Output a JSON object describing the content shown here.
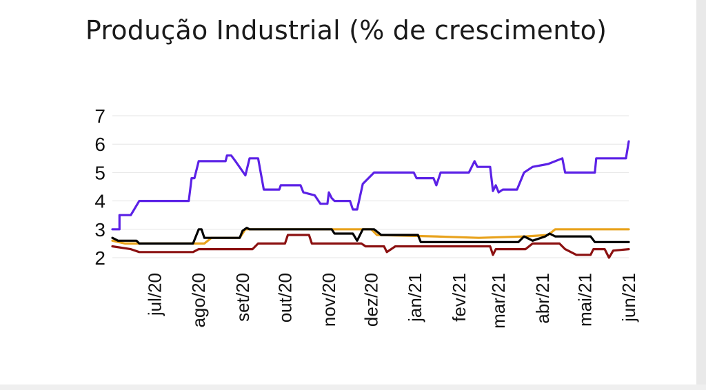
{
  "chart_data": {
    "type": "line",
    "title": "Produção Industrial (% de crescimento)",
    "xlabel": "",
    "ylabel": "",
    "ylim": [
      2,
      7
    ],
    "yticks": [
      2,
      3,
      4,
      5,
      6,
      7
    ],
    "xlim": [
      "2020-06-01",
      "2021-06-01"
    ],
    "xticks": [
      {
        "label": "jul/20",
        "date": "2020-07-01"
      },
      {
        "label": "ago/20",
        "date": "2020-08-01"
      },
      {
        "label": "set/20",
        "date": "2020-09-01"
      },
      {
        "label": "out/20",
        "date": "2020-10-01"
      },
      {
        "label": "nov/20",
        "date": "2020-11-01"
      },
      {
        "label": "dez/20",
        "date": "2020-12-01"
      },
      {
        "label": "jan/21",
        "date": "2021-01-01"
      },
      {
        "label": "fev/21",
        "date": "2021-02-01"
      },
      {
        "label": "mar/21",
        "date": "2021-03-01"
      },
      {
        "label": "abr/21",
        "date": "2021-04-01"
      },
      {
        "label": "mai/21",
        "date": "2021-05-01"
      },
      {
        "label": "jun/21",
        "date": "2021-06-01"
      }
    ],
    "grid": "horizontal",
    "legend": "none",
    "series": [
      {
        "color": "#5b21e6",
        "points": [
          [
            "2020-06-01",
            3.0
          ],
          [
            "2020-06-06",
            3.0
          ],
          [
            "2020-06-06",
            3.5
          ],
          [
            "2020-06-14",
            3.5
          ],
          [
            "2020-06-20",
            4.0
          ],
          [
            "2020-07-25",
            4.0
          ],
          [
            "2020-07-27",
            4.8
          ],
          [
            "2020-07-29",
            4.8
          ],
          [
            "2020-08-01",
            5.4
          ],
          [
            "2020-08-20",
            5.4
          ],
          [
            "2020-08-21",
            5.6
          ],
          [
            "2020-08-24",
            5.6
          ],
          [
            "2020-08-27",
            5.4
          ],
          [
            "2020-09-03",
            4.9
          ],
          [
            "2020-09-06",
            5.5
          ],
          [
            "2020-09-12",
            5.5
          ],
          [
            "2020-09-16",
            4.4
          ],
          [
            "2020-09-27",
            4.4
          ],
          [
            "2020-09-28",
            4.55
          ],
          [
            "2020-10-12",
            4.55
          ],
          [
            "2020-10-14",
            4.3
          ],
          [
            "2020-10-22",
            4.2
          ],
          [
            "2020-10-26",
            3.9
          ],
          [
            "2020-10-31",
            3.9
          ],
          [
            "2020-11-01",
            4.3
          ],
          [
            "2020-11-03",
            4.1
          ],
          [
            "2020-11-05",
            4.0
          ],
          [
            "2020-11-16",
            4.0
          ],
          [
            "2020-11-18",
            3.7
          ],
          [
            "2020-11-21",
            3.7
          ],
          [
            "2020-11-25",
            4.6
          ],
          [
            "2020-11-29",
            4.8
          ],
          [
            "2020-12-03",
            5.0
          ],
          [
            "2020-12-31",
            5.0
          ],
          [
            "2021-01-02",
            4.8
          ],
          [
            "2021-01-14",
            4.8
          ],
          [
            "2021-01-16",
            4.55
          ],
          [
            "2021-01-19",
            5.0
          ],
          [
            "2021-02-08",
            5.0
          ],
          [
            "2021-02-10",
            5.2
          ],
          [
            "2021-02-12",
            5.4
          ],
          [
            "2021-02-14",
            5.2
          ],
          [
            "2021-02-23",
            5.2
          ],
          [
            "2021-02-25",
            4.35
          ],
          [
            "2021-02-27",
            4.55
          ],
          [
            "2021-03-01",
            4.3
          ],
          [
            "2021-03-04",
            4.4
          ],
          [
            "2021-03-14",
            4.4
          ],
          [
            "2021-03-19",
            5.0
          ],
          [
            "2021-03-25",
            5.2
          ],
          [
            "2021-04-05",
            5.3
          ],
          [
            "2021-04-15",
            5.5
          ],
          [
            "2021-04-17",
            5.0
          ],
          [
            "2021-05-08",
            5.0
          ],
          [
            "2021-05-09",
            5.5
          ],
          [
            "2021-05-30",
            5.5
          ],
          [
            "2021-06-01",
            6.1
          ]
        ]
      },
      {
        "color": "#e8a21c",
        "points": [
          [
            "2020-06-01",
            2.6
          ],
          [
            "2020-06-10",
            2.5
          ],
          [
            "2020-08-05",
            2.5
          ],
          [
            "2020-08-10",
            2.7
          ],
          [
            "2020-08-30",
            2.7
          ],
          [
            "2020-09-03",
            3.0
          ],
          [
            "2020-12-01",
            3.0
          ],
          [
            "2020-12-05",
            2.8
          ],
          [
            "2021-01-15",
            2.75
          ],
          [
            "2021-02-15",
            2.7
          ],
          [
            "2021-03-20",
            2.75
          ],
          [
            "2021-04-05",
            2.8
          ],
          [
            "2021-04-10",
            3.0
          ],
          [
            "2021-06-01",
            3.0
          ]
        ]
      },
      {
        "color": "#8b1010",
        "points": [
          [
            "2020-06-01",
            2.4
          ],
          [
            "2020-06-14",
            2.3
          ],
          [
            "2020-06-20",
            2.2
          ],
          [
            "2020-07-28",
            2.2
          ],
          [
            "2020-08-01",
            2.3
          ],
          [
            "2020-09-08",
            2.3
          ],
          [
            "2020-09-12",
            2.5
          ],
          [
            "2020-10-01",
            2.5
          ],
          [
            "2020-10-03",
            2.8
          ],
          [
            "2020-10-18",
            2.8
          ],
          [
            "2020-10-20",
            2.5
          ],
          [
            "2020-11-24",
            2.5
          ],
          [
            "2020-11-27",
            2.4
          ],
          [
            "2020-12-10",
            2.4
          ],
          [
            "2020-12-12",
            2.2
          ],
          [
            "2020-12-18",
            2.4
          ],
          [
            "2021-02-23",
            2.4
          ],
          [
            "2021-02-25",
            2.1
          ],
          [
            "2021-02-27",
            2.3
          ],
          [
            "2021-03-20",
            2.3
          ],
          [
            "2021-03-25",
            2.5
          ],
          [
            "2021-04-13",
            2.5
          ],
          [
            "2021-04-17",
            2.3
          ],
          [
            "2021-04-25",
            2.1
          ],
          [
            "2021-05-05",
            2.1
          ],
          [
            "2021-05-07",
            2.3
          ],
          [
            "2021-05-15",
            2.3
          ],
          [
            "2021-05-18",
            2.0
          ],
          [
            "2021-05-21",
            2.25
          ],
          [
            "2021-06-01",
            2.3
          ]
        ]
      },
      {
        "color": "#000000",
        "points": [
          [
            "2020-06-01",
            2.7
          ],
          [
            "2020-06-05",
            2.6
          ],
          [
            "2020-06-18",
            2.6
          ],
          [
            "2020-06-20",
            2.5
          ],
          [
            "2020-07-28",
            2.5
          ],
          [
            "2020-08-01",
            3.0
          ],
          [
            "2020-08-03",
            3.0
          ],
          [
            "2020-08-05",
            2.7
          ],
          [
            "2020-08-30",
            2.7
          ],
          [
            "2020-09-01",
            2.95
          ],
          [
            "2020-09-04",
            3.05
          ],
          [
            "2020-09-06",
            3.0
          ],
          [
            "2020-11-03",
            3.0
          ],
          [
            "2020-11-05",
            2.85
          ],
          [
            "2020-11-18",
            2.85
          ],
          [
            "2020-11-21",
            2.6
          ],
          [
            "2020-11-25",
            3.0
          ],
          [
            "2020-12-03",
            3.0
          ],
          [
            "2020-12-08",
            2.8
          ],
          [
            "2021-01-03",
            2.8
          ],
          [
            "2021-01-05",
            2.55
          ],
          [
            "2021-02-10",
            2.55
          ],
          [
            "2021-03-15",
            2.55
          ],
          [
            "2021-03-19",
            2.75
          ],
          [
            "2021-03-25",
            2.6
          ],
          [
            "2021-04-03",
            2.75
          ],
          [
            "2021-04-06",
            2.85
          ],
          [
            "2021-04-10",
            2.75
          ],
          [
            "2021-05-05",
            2.75
          ],
          [
            "2021-05-08",
            2.55
          ],
          [
            "2021-06-01",
            2.55
          ]
        ]
      }
    ]
  }
}
